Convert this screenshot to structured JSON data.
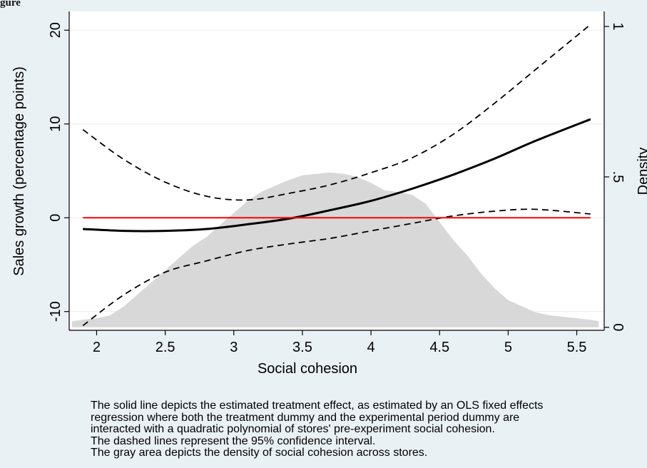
{
  "figure_label": "gure",
  "chart_data": {
    "type": "line",
    "title": "",
    "xlabel": "Social cohesion",
    "ylabel": "Sales growth (percentage points)",
    "y2label": "Density",
    "xlim": [
      1.8,
      5.7
    ],
    "ylim": [
      -12,
      22
    ],
    "y2lim": [
      -0.01,
      1.05
    ],
    "x_ticks": [
      2,
      2.5,
      3,
      3.5,
      4,
      4.5,
      5,
      5.5
    ],
    "x_tick_labels": [
      "2",
      "2.5",
      "3",
      "3.5",
      "4",
      "4.5",
      "5",
      "5.5"
    ],
    "y_ticks": [
      -10,
      0,
      10,
      20
    ],
    "y_tick_labels": [
      "-10",
      "0",
      "10",
      "20"
    ],
    "y2_ticks": [
      0,
      0.5,
      1
    ],
    "y2_tick_labels": [
      "0",
      ".5",
      "1"
    ],
    "grid": "horizontal",
    "series": [
      {
        "role": "estimate",
        "style": "solid",
        "color": "#000000",
        "x": [
          1.9,
          2.2,
          2.5,
          2.8,
          3.1,
          3.4,
          3.7,
          4.0,
          4.3,
          4.6,
          4.9,
          5.2,
          5.6
        ],
        "y": [
          -1.2,
          -1.4,
          -1.4,
          -1.2,
          -0.7,
          -0.1,
          0.8,
          1.8,
          3.1,
          4.6,
          6.3,
          8.2,
          10.5
        ]
      },
      {
        "role": "upper_ci",
        "style": "dashed",
        "color": "#000000",
        "x": [
          1.9,
          2.2,
          2.5,
          2.8,
          3.1,
          3.4,
          3.7,
          4.0,
          4.3,
          4.6,
          4.9,
          5.2,
          5.6
        ],
        "y": [
          9.4,
          6.2,
          3.8,
          2.3,
          1.9,
          2.6,
          3.5,
          4.8,
          6.4,
          8.9,
          12.2,
          15.8,
          20.6
        ]
      },
      {
        "role": "lower_ci",
        "style": "dashed",
        "color": "#000000",
        "x": [
          1.9,
          2.2,
          2.5,
          2.8,
          3.1,
          3.4,
          3.7,
          4.0,
          4.3,
          4.6,
          4.9,
          5.2,
          5.6
        ],
        "y": [
          -11.5,
          -8.2,
          -5.8,
          -4.6,
          -3.5,
          -2.8,
          -2.2,
          -1.4,
          -0.6,
          0.2,
          0.7,
          0.9,
          0.4
        ]
      },
      {
        "role": "zero_line",
        "style": "solid",
        "color": "#ff0000",
        "x": [
          1.9,
          5.6
        ],
        "y": [
          0,
          0
        ]
      }
    ],
    "density": {
      "axis": "y2",
      "color": "#d8d8d8",
      "x": [
        1.82,
        1.9,
        2.0,
        2.1,
        2.2,
        2.3,
        2.4,
        2.5,
        2.6,
        2.7,
        2.8,
        2.9,
        3.0,
        3.1,
        3.2,
        3.3,
        3.4,
        3.5,
        3.6,
        3.7,
        3.8,
        3.9,
        4.0,
        4.1,
        4.2,
        4.3,
        4.4,
        4.5,
        4.6,
        4.7,
        4.8,
        4.9,
        5.0,
        5.1,
        5.2,
        5.3,
        5.4,
        5.5,
        5.6,
        5.66
      ],
      "y": [
        0.02,
        0.025,
        0.03,
        0.04,
        0.07,
        0.11,
        0.15,
        0.19,
        0.23,
        0.27,
        0.3,
        0.34,
        0.38,
        0.42,
        0.45,
        0.47,
        0.49,
        0.505,
        0.51,
        0.515,
        0.51,
        0.5,
        0.48,
        0.455,
        0.45,
        0.44,
        0.41,
        0.35,
        0.29,
        0.24,
        0.18,
        0.13,
        0.09,
        0.07,
        0.05,
        0.04,
        0.035,
        0.03,
        0.025,
        0.02
      ]
    }
  },
  "caption": [
    "The solid line depicts the estimated treatment effect, as estimated by an OLS fixed effects",
    "regression where both the treatment dummy and the experimental period dummy are",
    "interacted with a quadratic polynomial of stores' pre-experiment social cohesion.",
    "The dashed lines represent the 95% confidence interval.",
    "The gray area depicts the density of social cohesion across stores."
  ]
}
